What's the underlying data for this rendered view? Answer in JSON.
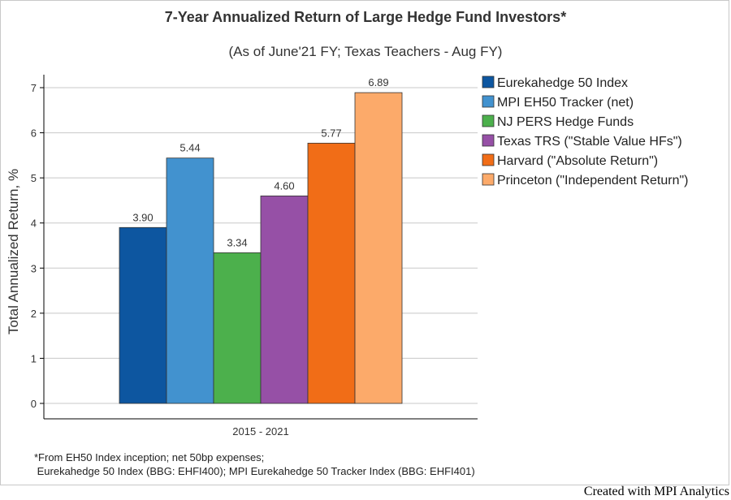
{
  "chart_data": {
    "type": "bar",
    "title": "7-Year Annualized Return of Large Hedge Fund Investors*",
    "subtitle": "(As of June'21 FY; Texas Teachers - Aug FY)",
    "ylabel": "Total Annualized Return, %",
    "xlabel": "",
    "categories": [
      "2015 - 2021"
    ],
    "ylim": [
      0,
      7.3
    ],
    "yticks": [
      "0",
      "1",
      "2",
      "3",
      "4",
      "5",
      "6",
      "7"
    ],
    "grid": true,
    "legend_position": "top-right",
    "series": [
      {
        "name": "Eurekahedge 50 Index",
        "values": [
          3.9
        ],
        "label": "3.90",
        "color": "#0d56a0"
      },
      {
        "name": "MPI EH50 Tracker (net)",
        "values": [
          5.44
        ],
        "label": "5.44",
        "color": "#4292cf"
      },
      {
        "name": "NJ PERS Hedge Funds",
        "values": [
          3.34
        ],
        "label": "3.34",
        "color": "#4cb04c"
      },
      {
        "name": "Texas TRS (\"Stable Value HFs\")",
        "values": [
          4.6
        ],
        "label": "4.60",
        "color": "#9650a6"
      },
      {
        "name": "Harvard (\"Absolute Return\")",
        "values": [
          5.77
        ],
        "label": "5.77",
        "color": "#f16d17"
      },
      {
        "name": "Princeton (\"Independent Return\")",
        "values": [
          6.89
        ],
        "label": "6.89",
        "color": "#fcaa6a"
      }
    ]
  },
  "footnote": {
    "line1": "*From EH50 Index inception; net 50bp expenses;",
    "line2": " Eurekahedge 50 Index (BBG: EHFI400); MPI Eurekahedge 50 Tracker Index (BBG: EHFI401)"
  },
  "credit": "Created with MPI Analytics"
}
